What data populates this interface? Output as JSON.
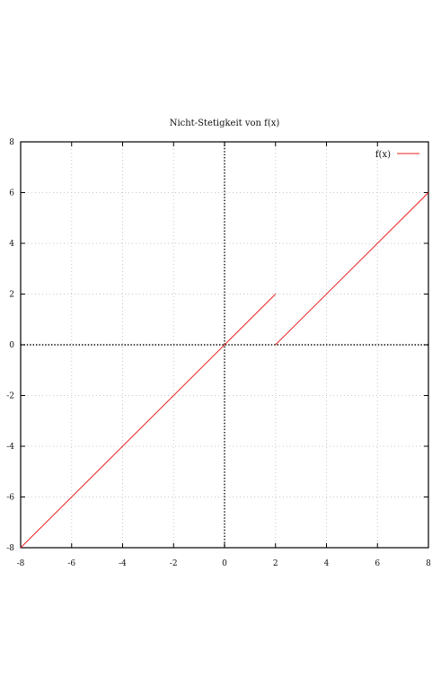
{
  "chart_data": {
    "type": "line",
    "title": "Nicht-Stetigkeit von f(x)",
    "xlabel": "",
    "ylabel": "",
    "xlim": [
      -8,
      8
    ],
    "ylim": [
      -8,
      8
    ],
    "x_ticks": [
      "-8",
      "-6",
      "-4",
      "-2",
      "0",
      "2",
      "4",
      "6",
      "8"
    ],
    "y_ticks": [
      "-8",
      "-6",
      "-4",
      "-2",
      "0",
      "2",
      "4",
      "6",
      "8"
    ],
    "grid": true,
    "zero_axes": true,
    "legend": {
      "position": "top-right",
      "entries": [
        "f(x)"
      ]
    },
    "series": [
      {
        "name": "f(x)",
        "color": "#e8211e",
        "segments": [
          {
            "x": [
              -8,
              2
            ],
            "y": [
              -8,
              2
            ]
          },
          {
            "x": [
              2,
              8
            ],
            "y": [
              0,
              6
            ]
          }
        ]
      }
    ]
  }
}
